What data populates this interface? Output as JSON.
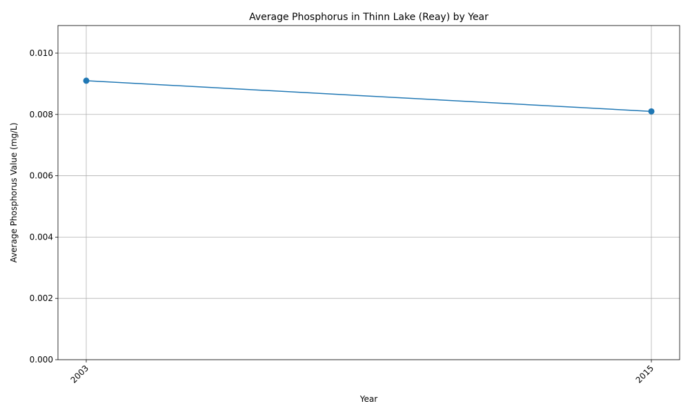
{
  "chart_data": {
    "type": "line",
    "title": "Average Phosphorus in Thinn Lake (Reay) by Year",
    "xlabel": "Year",
    "ylabel": "Average Phosphorus Value (mg/L)",
    "categories": [
      "2003",
      "2015"
    ],
    "series": [
      {
        "values": [
          0.0091,
          0.0081
        ],
        "color": "#1f77b4",
        "marker": "circle"
      }
    ],
    "ylim": [
      0,
      0.0109
    ],
    "yticks": [
      0.0,
      0.002,
      0.004,
      0.006,
      0.008,
      0.01
    ],
    "ytick_labels": [
      "0.000",
      "0.002",
      "0.004",
      "0.006",
      "0.008",
      "0.010"
    ],
    "grid": true,
    "legend": "none"
  }
}
